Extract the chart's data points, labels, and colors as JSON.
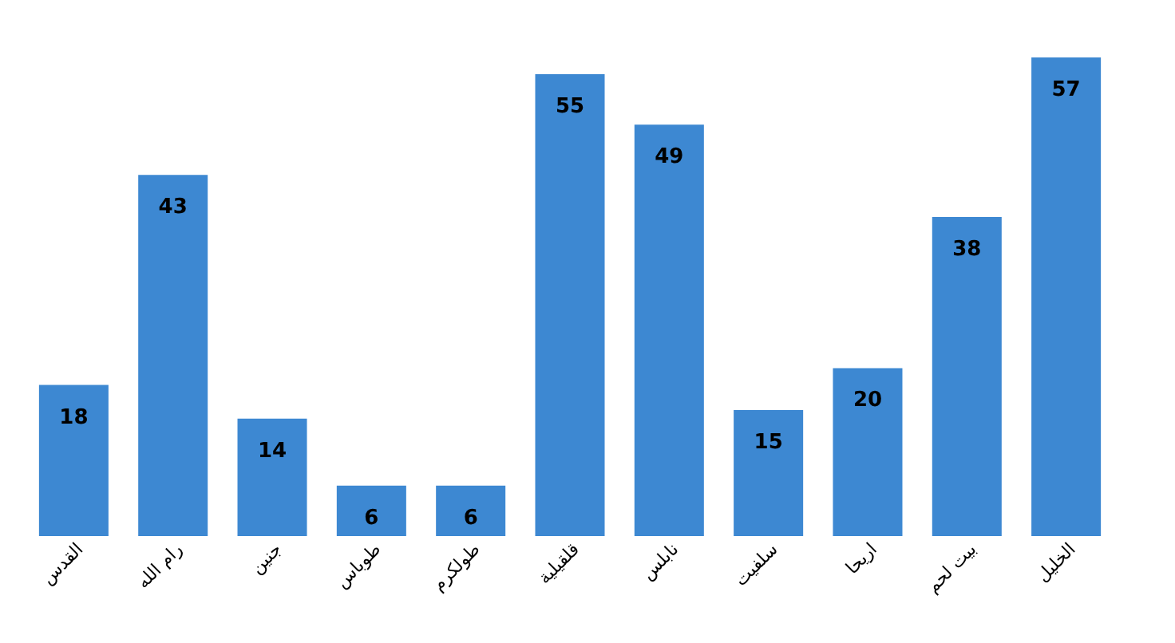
{
  "chart_data": {
    "type": "bar",
    "categories": [
      "القدس",
      "رام الله",
      "جنين",
      "طوباس",
      "طولكرم",
      "قلقيلية",
      "نابلس",
      "سلفيت",
      "اريحا",
      "بيت لحم",
      "الخليل"
    ],
    "values": [
      18,
      43,
      14,
      6,
      6,
      55,
      49,
      15,
      20,
      38,
      57
    ],
    "color": "#3d88d2",
    "data_labels": true,
    "tick_labels": "x",
    "grid": false
  }
}
